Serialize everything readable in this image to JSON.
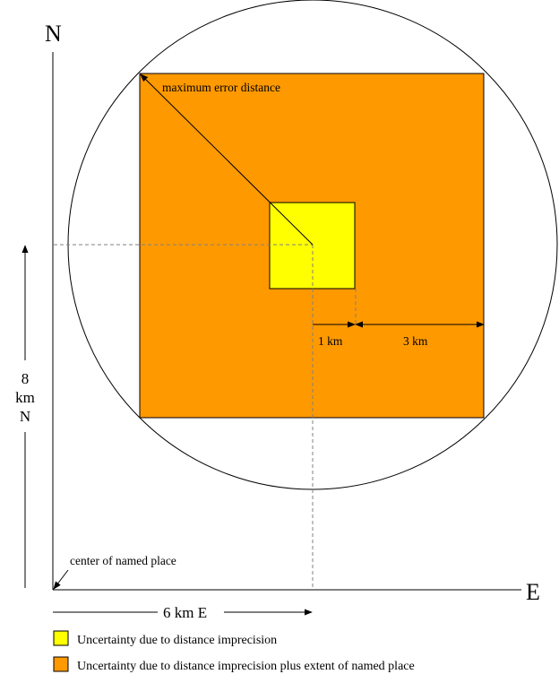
{
  "axes": {
    "north_label": "N",
    "east_label": "E"
  },
  "labels": {
    "max_error_distance": "maximum error distance",
    "one_km": "1 km",
    "three_km": "3 km",
    "north_distance_line1": "8",
    "north_distance_line2": "km",
    "north_distance_line3": "N",
    "east_distance": "6 km E",
    "center_named_place": "center of named place"
  },
  "legend": [
    {
      "label": "Uncertainty due to distance imprecision",
      "color": "#ffff00"
    },
    {
      "label": "Uncertainty due to distance imprecision plus extent of named place",
      "color": "#ff9900"
    }
  ],
  "colors": {
    "inner_square": "#ffff00",
    "outer_square": "#ff9900",
    "lines": "#000000",
    "guide_lines": "#808080"
  }
}
